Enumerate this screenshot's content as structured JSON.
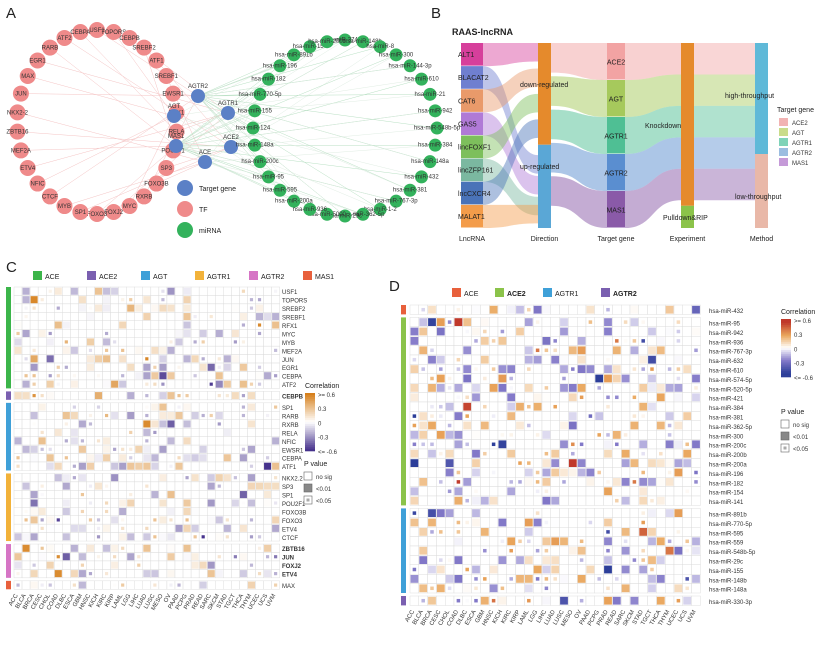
{
  "panels": {
    "A": {
      "letter": "A",
      "tf_nodes": [
        "USF1",
        "TOPORS",
        "CEBPB",
        "SREBF2",
        "ATF1",
        "SREBF1",
        "EWSR1",
        "RFX1",
        "RELA",
        "POU2F1",
        "SP3",
        "FOXO3B",
        "RXRB",
        "MYC",
        "FOXJ2",
        "FOXO3",
        "SP1",
        "MYB",
        "CTCF",
        "NFIC",
        "ETV4",
        "MEF2A",
        "ZBTB16",
        "NKX2-2",
        "JUN",
        "MAX",
        "EGR1",
        "RARB",
        "ATF2",
        "CEBPA"
      ],
      "target_nodes": [
        "AGTR2",
        "AGT",
        "AGTR1",
        "MAS1",
        "ACE2",
        "ACE"
      ],
      "mirna_nodes": [
        "hsa-miR-374-5p",
        "hsa-miR-148b",
        "hsa-miR-8",
        "hsa-miR-300",
        "hsa-miR-144-3p",
        "hsa-miR-610",
        "hsa-miR-21",
        "hsa-miR-942",
        "hsa-miR-548b-5p",
        "hsa-miR-384",
        "hsa-miR-148a",
        "hsa-miR-432",
        "hsa-miR-381",
        "hsa-miR-767-3p",
        "hsa-miR-1-2",
        "hsa-miR-362-5p",
        "hsa-miR-29c",
        "hsa-miR-5000",
        "hsa-miR-936",
        "hsa-miR-200a",
        "hsa-miR-595",
        "hsa-miR-95",
        "hsa-miR-200c",
        "hsa-miR-148a",
        "hsa-miR-124",
        "hsa-miR-155",
        "hsa-miR-770-5p",
        "hsa-miR-182",
        "hsa-miR-196",
        "hsa-miR-891b",
        "hsa-miR-154",
        "hsa-miR-200b"
      ],
      "legend": [
        {
          "label": "Target gene",
          "color": "#5b80c6"
        },
        {
          "label": "TF",
          "color": "#ef8a8a"
        },
        {
          "label": "miRNA",
          "color": "#33b25c"
        }
      ]
    },
    "B": {
      "letter": "B",
      "title": "RAAS-lncRNA",
      "lncrna": [
        {
          "name": "ALT1",
          "color": "#d63f9b"
        },
        {
          "name": "BLACAT2",
          "color": "#6f7fd0"
        },
        {
          "name": "CAT6",
          "color": "#e99a6a"
        },
        {
          "name": "GAS5",
          "color": "#b07ad6"
        },
        {
          "name": "lincFOXF1",
          "color": "#7dbf5c"
        },
        {
          "name": "lincZFP161",
          "color": "#7bb8a0"
        },
        {
          "name": "lncCXCR4",
          "color": "#4a73b8"
        },
        {
          "name": "MALAT1",
          "color": "#f39c4a"
        }
      ],
      "direction": [
        {
          "name": "down-regulated",
          "color": "#e58a2c"
        },
        {
          "name": "up-regulated",
          "color": "#5aa7d6"
        }
      ],
      "target": [
        {
          "name": "ACE2",
          "color": "#f2a3a3"
        },
        {
          "name": "AGT",
          "color": "#a6c95c"
        },
        {
          "name": "AGTR1",
          "color": "#4fbf94"
        },
        {
          "name": "AGTR2",
          "color": "#5a8ed0"
        },
        {
          "name": "MAS1",
          "color": "#8a5aa8"
        }
      ],
      "experiment": [
        {
          "name": "Knockdown",
          "color": "#e58a2c"
        },
        {
          "name": "Pulldown&RIP",
          "color": "#8bc34a"
        }
      ],
      "method": [
        {
          "name": "high-throughput",
          "color": "#5fb9d8"
        },
        {
          "name": "low-throughput",
          "color": "#e9b8a8"
        }
      ],
      "axis_labels": [
        "LncRNA",
        "Direction",
        "Target gene",
        "Experiment",
        "Method"
      ],
      "legend_title": "Target gene",
      "legend": [
        {
          "label": "ACE2",
          "color": "#f2b3b3"
        },
        {
          "label": "AGT",
          "color": "#c9dc8a"
        },
        {
          "label": "AGTR1",
          "color": "#7fd3b8"
        },
        {
          "label": "AGTR2",
          "color": "#9bbde0"
        },
        {
          "label": "MAS1",
          "color": "#c59ad8"
        }
      ]
    },
    "C": {
      "letter": "C",
      "legend": [
        {
          "label": "ACE",
          "color": "#3cb54a"
        },
        {
          "label": "ACE2",
          "color": "#7a5fb0"
        },
        {
          "label": "AGT",
          "color": "#3fa0d8"
        },
        {
          "label": "AGTR1",
          "color": "#f2b23a"
        },
        {
          "label": "AGTR2",
          "color": "#d675c5"
        },
        {
          "label": "MAS1",
          "color": "#e8603c"
        }
      ],
      "groups": [
        {
          "color": "#3cb54a",
          "rows": [
            "USF1",
            "TOPORS",
            "SREBF2",
            "SREBF1",
            "RFX1",
            "MYC",
            "MYB",
            "MEF2A",
            "JUN",
            "EGR1",
            "CEBPA",
            "ATF2"
          ]
        },
        {
          "color": "#7a5fb0",
          "rows": [
            "CEBPB"
          ]
        },
        {
          "color": "#3fa0d8",
          "rows": [
            "SP1",
            "RARB",
            "RXRB",
            "RELA",
            "NFIC",
            "EWSR1",
            "CEBPA",
            "ATF1"
          ]
        },
        {
          "color": "#f2b23a",
          "rows": [
            "NKX2.2",
            "SP3",
            "SP1",
            "POU2F1",
            "FOXO3B",
            "FOXO3",
            "ETV4",
            "CTCF"
          ]
        },
        {
          "color": "#d675c5",
          "rows": [
            "ZBTB16",
            "JUN",
            "FOXJ2",
            "ETV4"
          ]
        },
        {
          "color": "#e8603c",
          "rows": [
            "MAX"
          ]
        }
      ],
      "bold_rows": [
        "CEBPB",
        "ZBTB16",
        "JUN",
        "FOXJ2",
        "ETV4"
      ],
      "colorbar": {
        "title": "Correlation",
        "ticks": [
          ">= 0.6",
          "0.3",
          "0",
          "-0.3",
          "<= -0.6"
        ]
      },
      "pvalue": {
        "title": "P value",
        "items": [
          "no sig",
          "<0.01",
          "<0.05"
        ]
      }
    },
    "D": {
      "letter": "D",
      "legend": [
        {
          "label": "ACE",
          "color": "#e8603c"
        },
        {
          "label": "ACE2",
          "color": "#8bc34a"
        },
        {
          "label": "AGTR1",
          "color": "#3fa0d8"
        },
        {
          "label": "AGTR2",
          "color": "#7a5fb0"
        }
      ],
      "groups": [
        {
          "color": "#e8603c",
          "rows": [
            "hsa-miR-432"
          ]
        },
        {
          "color": "#8bc34a",
          "rows": [
            "hsa-miR-95",
            "hsa-miR-942",
            "hsa-miR-936",
            "hsa-miR-767-3p",
            "hsa-miR-632",
            "hsa-miR-610",
            "hsa-miR-574-5p",
            "hsa-miR-520-5p",
            "hsa-miR-421",
            "hsa-miR-384",
            "hsa-miR-381",
            "hsa-miR-362-5p",
            "hsa-miR-300",
            "hsa-miR-200c",
            "hsa-miR-200b",
            "hsa-miR-200a",
            "hsa-miR-196",
            "hsa-miR-182",
            "hsa-miR-154",
            "hsa-miR-141"
          ]
        },
        {
          "color": "#3fa0d8",
          "rows": [
            "hsa-miR-891b",
            "hsa-miR-770-5p",
            "hsa-miR-595",
            "hsa-miR-559",
            "hsa-miR-548b-5p",
            "hsa-miR-29c",
            "hsa-miR-155",
            "hsa-miR-148b",
            "hsa-miR-148a"
          ]
        },
        {
          "color": "#7a5fb0",
          "rows": [
            "hsa-miR-330-3p"
          ]
        }
      ],
      "colorbar": {
        "title": "Correlation",
        "ticks": [
          ">= 0.6",
          "0.3",
          "0",
          "-0.3",
          "<= -0.6"
        ]
      },
      "pvalue": {
        "title": "P value",
        "items": [
          "no sig",
          "<0.01",
          "<0.05"
        ]
      }
    }
  },
  "cancers": [
    "ACC",
    "BLCA",
    "BRCA",
    "CESC",
    "CHOL",
    "COAD",
    "DLBC",
    "ESCA",
    "GBM",
    "HNSC",
    "KICH",
    "KIRC",
    "KIRP",
    "LAML",
    "LGG",
    "LIHC",
    "LUAD",
    "LUSC",
    "MESO",
    "OV",
    "PAAD",
    "PCPG",
    "PRAD",
    "READ",
    "SARC",
    "SKCM",
    "STAD",
    "TGCT",
    "THCA",
    "THYM",
    "UCEC",
    "UCS",
    "UVM"
  ],
  "colors": {
    "pos": "#c0392b",
    "neg": "#2c3e99",
    "edge": "#f2b8b8"
  }
}
